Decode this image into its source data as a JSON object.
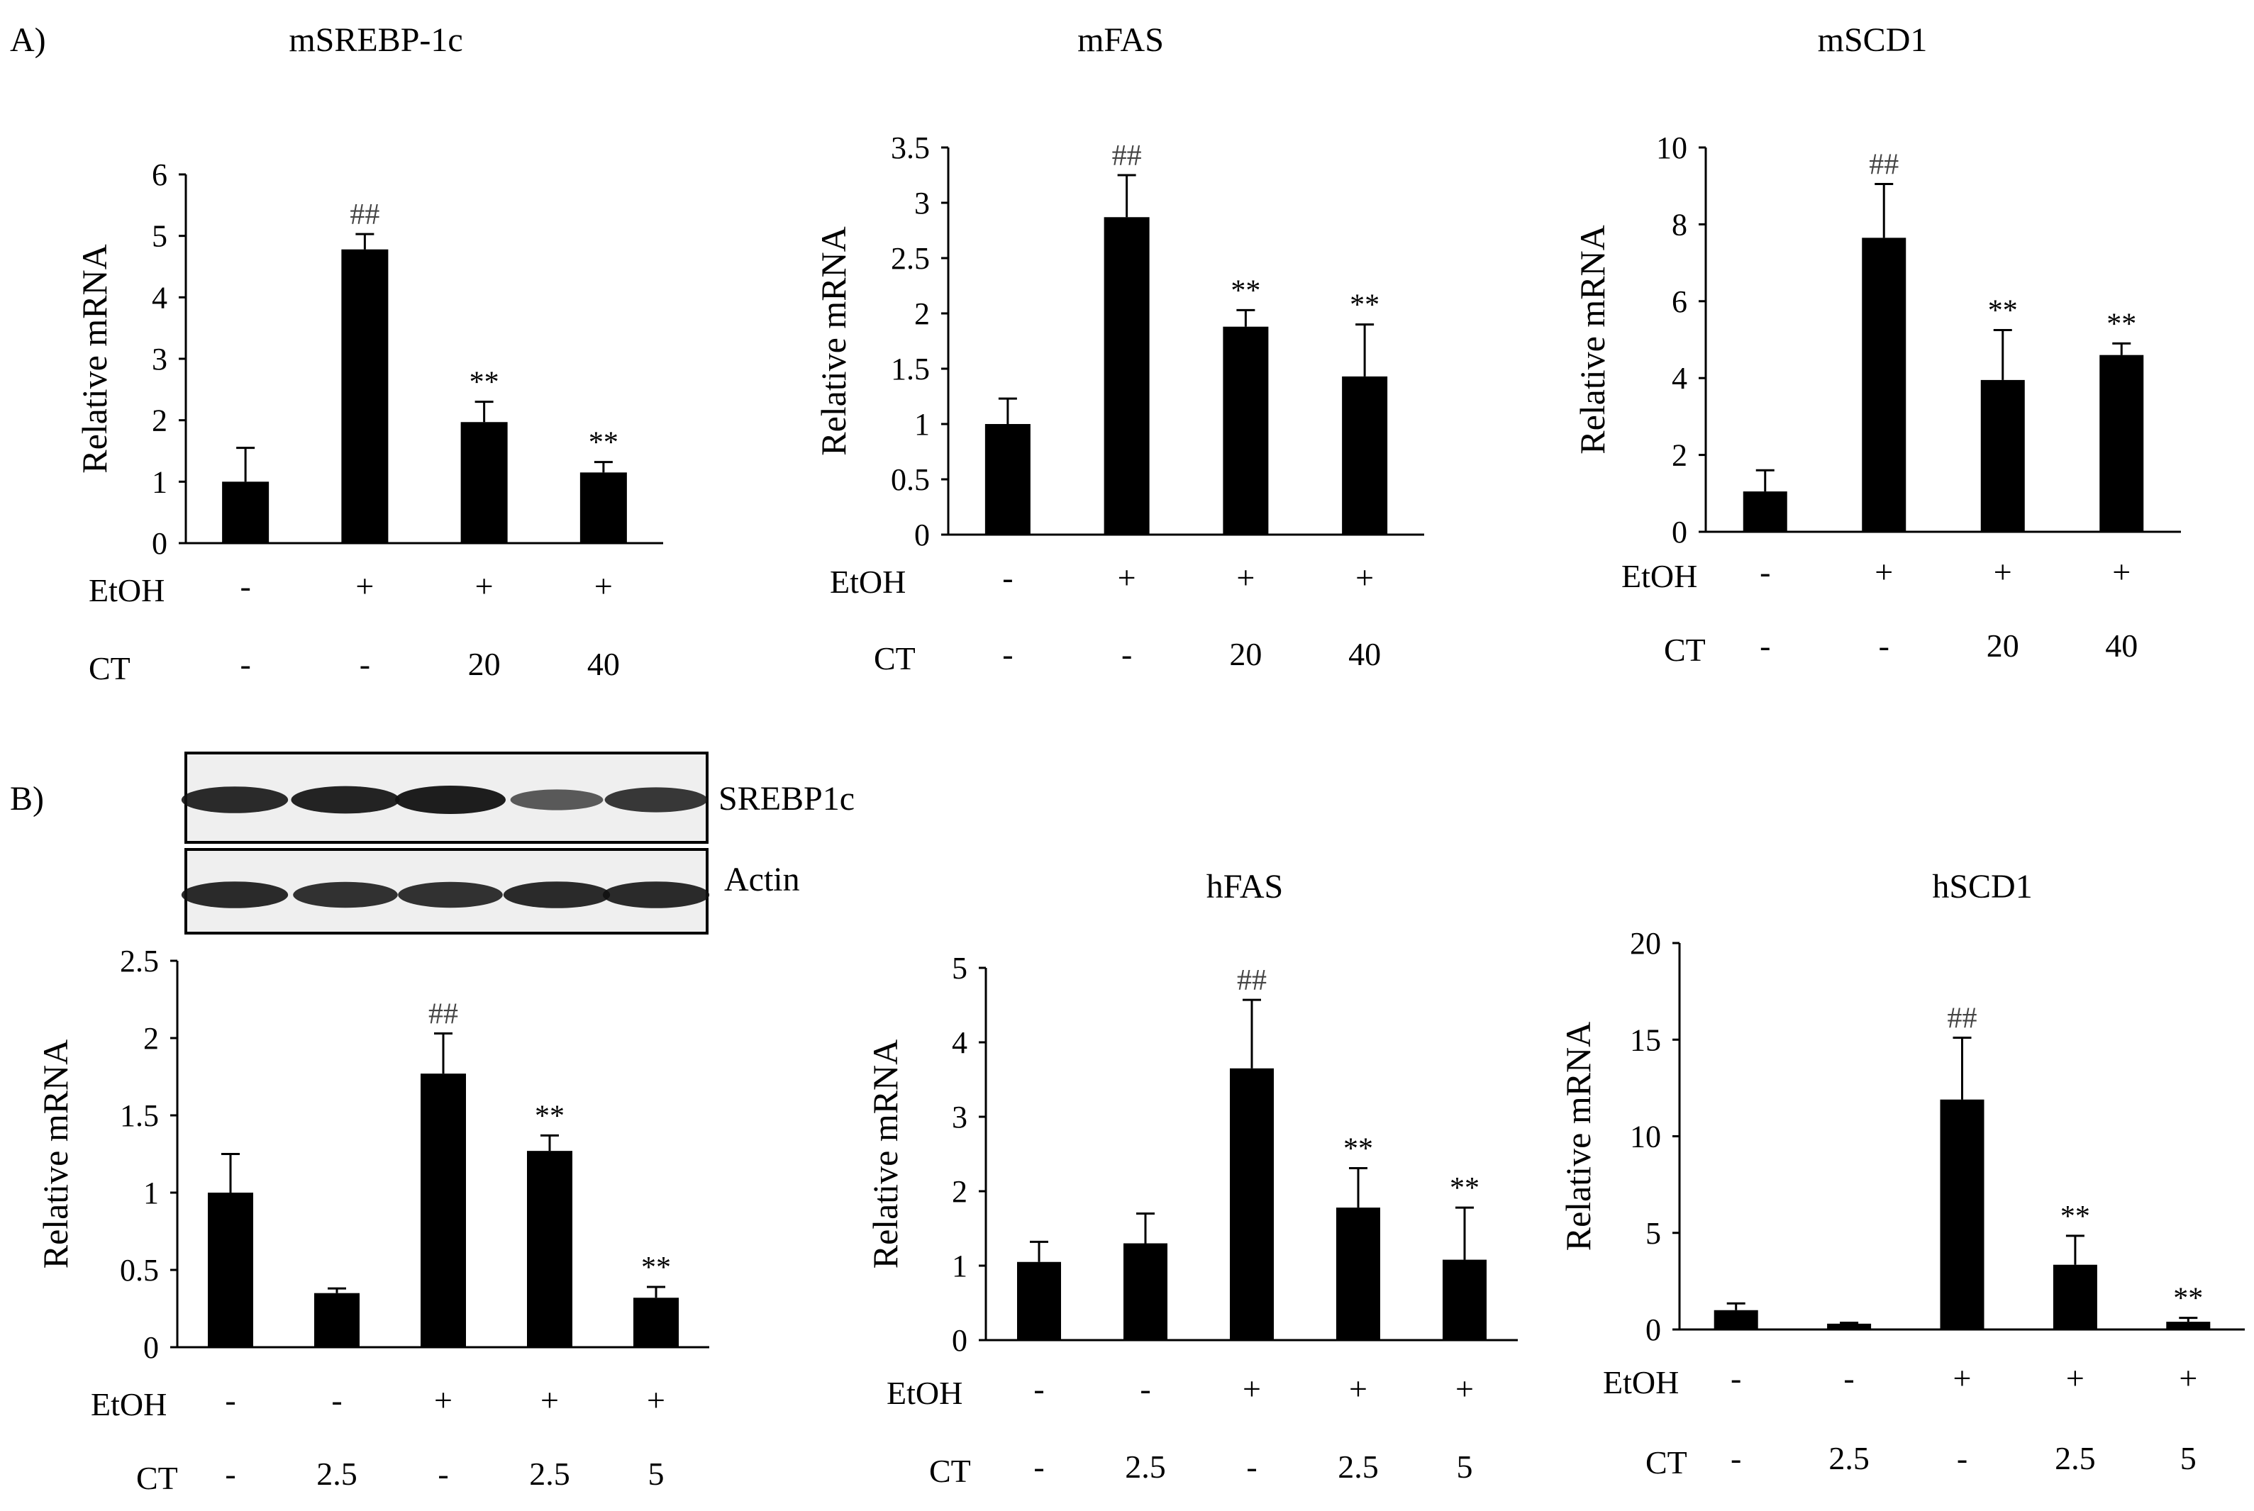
{
  "panels": [
    {
      "label": "A)"
    },
    {
      "label": "B)"
    }
  ],
  "western_blot": {
    "rows": [
      {
        "label": "SREBP1c",
        "intensities": [
          0.9,
          0.95,
          1.0,
          0.55,
          0.8
        ]
      },
      {
        "label": "Actin",
        "intensities": [
          0.9,
          0.85,
          0.85,
          0.9,
          0.9
        ]
      }
    ]
  },
  "chart_data": [
    {
      "type": "bar",
      "title": "mSREBP-1c",
      "ylabel": "Relative mRNA",
      "ylim": [
        0,
        6
      ],
      "yticks": [
        "0",
        "1",
        "2",
        "3",
        "4",
        "5",
        "6"
      ],
      "values": [
        1.0,
        4.78,
        1.97,
        1.15
      ],
      "errors": [
        0.55,
        0.25,
        0.33,
        0.17
      ],
      "annotations": [
        "",
        "##",
        "**",
        "**"
      ],
      "conditions": [
        {
          "name": "EtOH",
          "values": [
            "-",
            "+",
            "+",
            "+"
          ]
        },
        {
          "name": "CT",
          "values": [
            "-",
            "-",
            "20",
            "40"
          ]
        }
      ]
    },
    {
      "type": "bar",
      "title": "mFAS",
      "ylabel": "Relative mRNA",
      "ylim": [
        0,
        3.5
      ],
      "yticks": [
        "0",
        "0.5",
        "1",
        "1.5",
        "2",
        "2.5",
        "3",
        "3.5"
      ],
      "values": [
        1.0,
        2.87,
        1.88,
        1.43
      ],
      "errors": [
        0.23,
        0.38,
        0.15,
        0.47
      ],
      "annotations": [
        "",
        "##",
        "**",
        "**"
      ],
      "conditions": [
        {
          "name": "EtOH",
          "values": [
            "-",
            "+",
            "+",
            "+"
          ]
        },
        {
          "name": "CT",
          "values": [
            "-",
            "-",
            "20",
            "40"
          ]
        }
      ]
    },
    {
      "type": "bar",
      "title": "mSCD1",
      "ylabel": "Relative mRNA",
      "ylim": [
        0,
        10
      ],
      "yticks": [
        "0",
        "2",
        "4",
        "6",
        "8",
        "10"
      ],
      "values": [
        1.05,
        7.65,
        3.95,
        4.6
      ],
      "errors": [
        0.55,
        1.4,
        1.3,
        0.3
      ],
      "annotations": [
        "",
        "##",
        "**",
        "**"
      ],
      "conditions": [
        {
          "name": "EtOH",
          "values": [
            "-",
            "+",
            "+",
            "+"
          ]
        },
        {
          "name": "CT",
          "values": [
            "-",
            "-",
            "20",
            "40"
          ]
        }
      ]
    },
    {
      "type": "bar",
      "title": "",
      "ylabel": "Relative mRNA",
      "ylim": [
        0,
        2.5
      ],
      "yticks": [
        "0",
        "0.5",
        "1",
        "1.5",
        "2",
        "2.5"
      ],
      "values": [
        1.0,
        0.35,
        1.77,
        1.27,
        0.32
      ],
      "errors": [
        0.25,
        0.03,
        0.26,
        0.1,
        0.07
      ],
      "annotations": [
        "",
        "",
        "##",
        "**",
        "**"
      ],
      "conditions": [
        {
          "name": "EtOH",
          "values": [
            "-",
            "-",
            "+",
            "+",
            "+"
          ]
        },
        {
          "name": "CT",
          "values": [
            "-",
            "2.5",
            "-",
            "2.5",
            "5"
          ]
        }
      ]
    },
    {
      "type": "bar",
      "title": "hFAS",
      "ylabel": "Relative mRNA",
      "ylim": [
        0,
        5
      ],
      "yticks": [
        "0",
        "1",
        "2",
        "3",
        "4",
        "5"
      ],
      "values": [
        1.05,
        1.3,
        3.65,
        1.78,
        1.08
      ],
      "errors": [
        0.27,
        0.4,
        0.92,
        0.53,
        0.7
      ],
      "annotations": [
        "",
        "",
        "##",
        "**",
        "**"
      ],
      "conditions": [
        {
          "name": "EtOH",
          "values": [
            "-",
            "-",
            "+",
            "+",
            "+"
          ]
        },
        {
          "name": "CT",
          "values": [
            "-",
            "2.5",
            "-",
            "2.5",
            "5"
          ]
        }
      ]
    },
    {
      "type": "bar",
      "title": "hSCD1",
      "ylabel": "Relative mRNA",
      "ylim": [
        0,
        20
      ],
      "yticks": [
        "0",
        "5",
        "10",
        "15",
        "20"
      ],
      "values": [
        1.0,
        0.3,
        11.9,
        3.35,
        0.4
      ],
      "errors": [
        0.35,
        0.05,
        3.2,
        1.5,
        0.2
      ],
      "annotations": [
        "",
        "",
        "##",
        "**",
        "**"
      ],
      "conditions": [
        {
          "name": "EtOH",
          "values": [
            "-",
            "-",
            "+",
            "+",
            "+"
          ]
        },
        {
          "name": "CT",
          "values": [
            "-",
            "2.5",
            "-",
            "2.5",
            "5"
          ]
        }
      ]
    }
  ]
}
